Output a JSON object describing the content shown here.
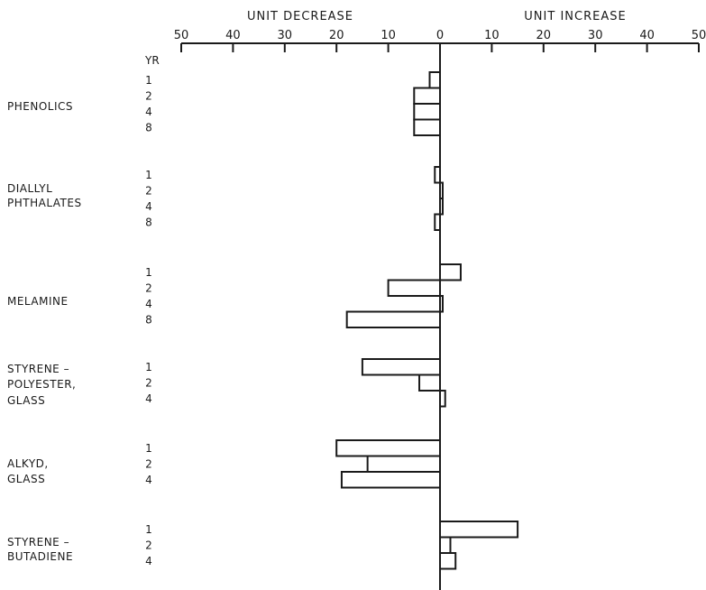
{
  "chart_data": {
    "type": "bar",
    "orientation": "horizontal",
    "axis": {
      "left_title": "UNIT DECREASE",
      "right_title": "UNIT INCREASE",
      "ticks": [
        -50,
        -40,
        -30,
        -20,
        -10,
        0,
        10,
        20,
        30,
        40,
        50
      ],
      "tick_labels": [
        "50",
        "40",
        "30",
        "20",
        "10",
        "0",
        "10",
        "20",
        "30",
        "40",
        "50"
      ],
      "range": [
        -50,
        50
      ],
      "position": "top"
    },
    "year_header": "YR",
    "groups": [
      {
        "name": "PHENOLICS",
        "lines": [
          "PHENOLICS"
        ],
        "bars": [
          {
            "year": "1",
            "value": -2
          },
          {
            "year": "2",
            "value": -5
          },
          {
            "year": "4",
            "value": -5
          },
          {
            "year": "8",
            "value": -5
          }
        ]
      },
      {
        "name": "DIALLYL PHTHALATES",
        "lines": [
          "DIALLYL",
          "PHTHALATES"
        ],
        "bars": [
          {
            "year": "1",
            "value": -1
          },
          {
            "year": "2",
            "value": 0.5
          },
          {
            "year": "4",
            "value": 0.5
          },
          {
            "year": "8",
            "value": -1
          }
        ]
      },
      {
        "name": "MELAMINE",
        "lines": [
          "MELAMINE"
        ],
        "bars": [
          {
            "year": "1",
            "value": 4
          },
          {
            "year": "2",
            "value": -10
          },
          {
            "year": "4",
            "value": 0.5
          },
          {
            "year": "8",
            "value": -18
          }
        ]
      },
      {
        "name": "STYRENE-POLYESTER, GLASS",
        "lines": [
          "STYRENE –",
          "POLYESTER,",
          "GLASS"
        ],
        "bars": [
          {
            "year": "1",
            "value": -15
          },
          {
            "year": "2",
            "value": -4
          },
          {
            "year": "4",
            "value": 1
          }
        ]
      },
      {
        "name": "ALKYD, GLASS",
        "lines": [
          "ALKYD,",
          "GLASS"
        ],
        "bars": [
          {
            "year": "1",
            "value": -20
          },
          {
            "year": "2",
            "value": -14
          },
          {
            "year": "4",
            "value": -19
          }
        ]
      },
      {
        "name": "STYRENE-BUTADIENE",
        "lines": [
          "STYRENE –",
          "BUTADIENE"
        ],
        "bars": [
          {
            "year": "1",
            "value": 15
          },
          {
            "year": "2",
            "value": 2
          },
          {
            "year": "4",
            "value": 3
          }
        ]
      }
    ],
    "colors": {
      "bar_fill": "#ffffff",
      "stroke": "#1a1a1a"
    }
  }
}
